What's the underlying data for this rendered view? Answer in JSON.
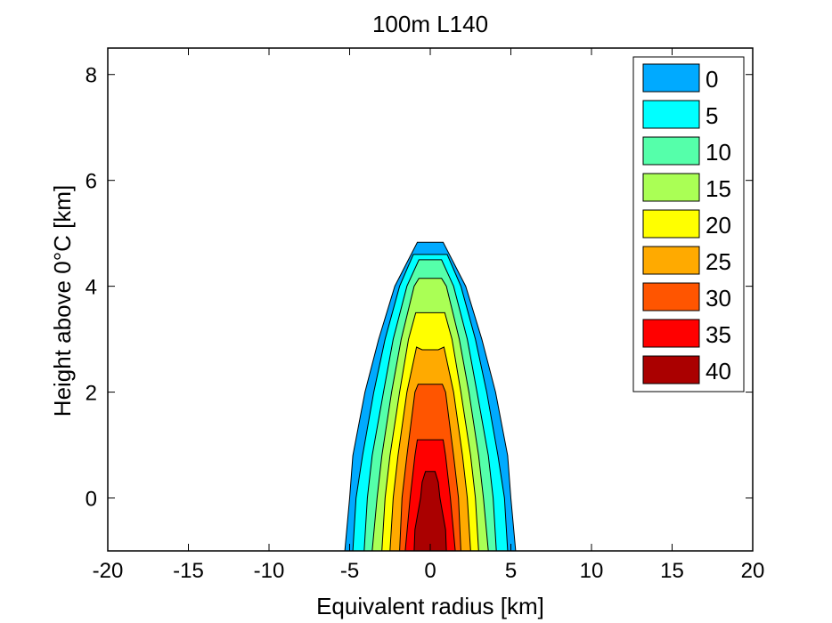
{
  "chart_data": {
    "type": "contourf",
    "title": "100m L140",
    "xlabel": "Equivalent radius [km]",
    "ylabel": "Height above 0°C [km]",
    "xlim": [
      -20,
      20
    ],
    "ylim": [
      -1,
      8.5
    ],
    "xticks": [
      -20,
      -15,
      -10,
      -5,
      0,
      5,
      10,
      15,
      20
    ],
    "yticks": [
      0,
      2,
      4,
      6,
      8
    ],
    "legend_position": "top-right",
    "levels": [
      {
        "value": 0,
        "label": "0",
        "color": "#00aaff",
        "profile": [
          [
            -1,
            5.3
          ],
          [
            0,
            5.0
          ],
          [
            0.8,
            4.8
          ],
          [
            2,
            4.05
          ],
          [
            3,
            3.2
          ],
          [
            4,
            2.2
          ],
          [
            4.83,
            0.8
          ]
        ]
      },
      {
        "value": 5,
        "label": "5",
        "color": "#00ffff",
        "profile": [
          [
            -1,
            4.8
          ],
          [
            0,
            4.6
          ],
          [
            0.8,
            4.2
          ],
          [
            2,
            3.5
          ],
          [
            3,
            2.8
          ],
          [
            4,
            1.9
          ],
          [
            4.6,
            1.05
          ]
        ]
      },
      {
        "value": 10,
        "label": "10",
        "color": "#55ffaa",
        "profile": [
          [
            -1,
            4.1
          ],
          [
            0,
            3.9
          ],
          [
            0.8,
            3.6
          ],
          [
            2,
            2.9
          ],
          [
            3,
            2.3
          ],
          [
            4,
            1.45
          ],
          [
            4.5,
            0.7
          ]
        ]
      },
      {
        "value": 15,
        "label": "15",
        "color": "#aaff55",
        "profile": [
          [
            -1,
            3.6
          ],
          [
            0,
            3.3
          ],
          [
            0.8,
            3.0
          ],
          [
            2,
            2.4
          ],
          [
            3,
            1.8
          ],
          [
            4,
            1.0
          ],
          [
            4.15,
            0.7
          ]
        ]
      },
      {
        "value": 20,
        "label": "20",
        "color": "#ffff00",
        "profile": [
          [
            -1,
            3.0
          ],
          [
            0,
            2.8
          ],
          [
            0.8,
            2.5
          ],
          [
            2,
            1.9
          ],
          [
            3,
            1.35
          ],
          [
            3.5,
            0.9
          ],
          [
            3.5,
            0.5
          ]
        ]
      },
      {
        "value": 25,
        "label": "25",
        "color": "#ffaa00",
        "profile": [
          [
            -1,
            2.5
          ],
          [
            0,
            2.3
          ],
          [
            0.8,
            2.0
          ],
          [
            2,
            1.45
          ],
          [
            2.85,
            0.85
          ],
          [
            2.8,
            0.5
          ]
        ]
      },
      {
        "value": 30,
        "label": "30",
        "color": "#ff5500",
        "profile": [
          [
            -1,
            1.9
          ],
          [
            0,
            1.75
          ],
          [
            0.8,
            1.45
          ],
          [
            2,
            0.95
          ],
          [
            2.15,
            0.75
          ]
        ]
      },
      {
        "value": 35,
        "label": "35",
        "color": "#ff0000",
        "profile": [
          [
            -1,
            1.55
          ],
          [
            0,
            1.25
          ],
          [
            0.8,
            0.95
          ],
          [
            1.1,
            0.8
          ]
        ]
      },
      {
        "value": 40,
        "label": "40",
        "color": "#aa0000",
        "profile": [
          [
            -1,
            1.0
          ],
          [
            -0.6,
            0.95
          ],
          [
            0,
            0.6
          ],
          [
            0.3,
            0.5
          ],
          [
            0.5,
            0.3
          ]
        ]
      }
    ]
  }
}
